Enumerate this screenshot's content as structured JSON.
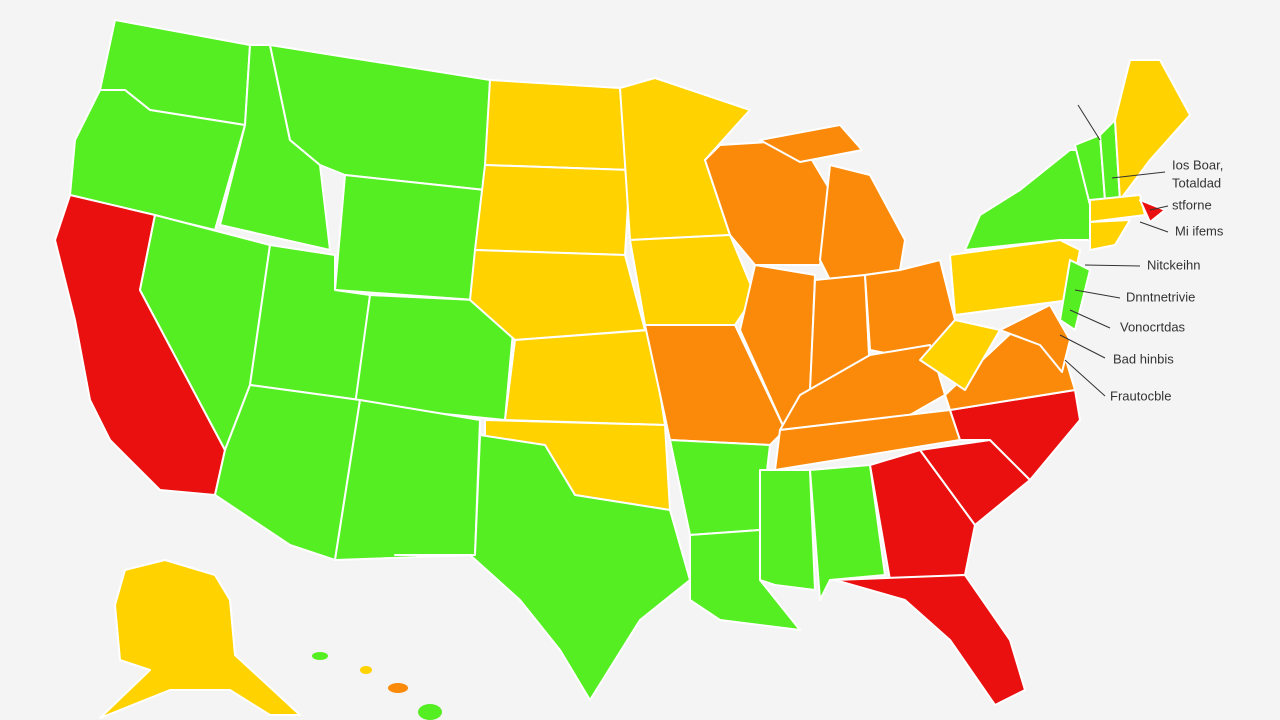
{
  "map": {
    "labels": [
      "Ios Boar,",
      "Totaldad",
      "stforne",
      "Mi ifems",
      "Nitckeihn",
      "Dnntnetrivie",
      "Vonocrtdas",
      "Bad hinbis",
      "Frautocble"
    ]
  }
}
